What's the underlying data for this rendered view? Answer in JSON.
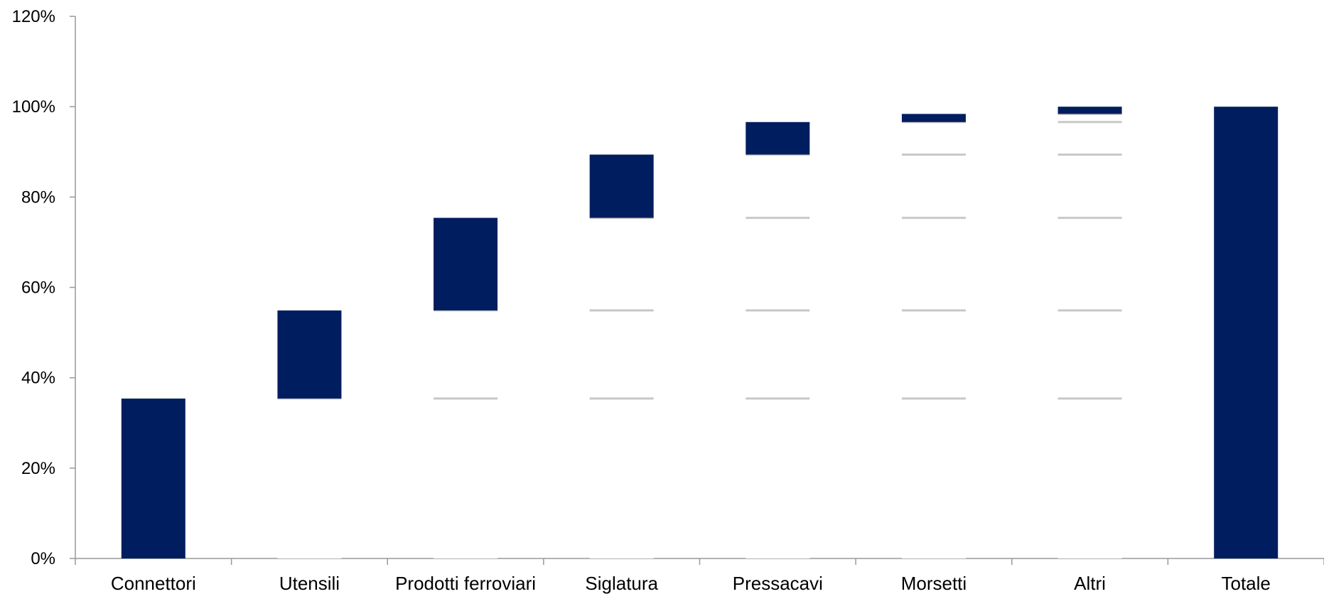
{
  "chart_data": {
    "type": "bar",
    "subtype": "waterfall",
    "categories": [
      "Connettori",
      "Utensili",
      "Prodotti ferroviari",
      "Siglatura",
      "Pressacavi",
      "Morsetti",
      "Altri",
      "Totale"
    ],
    "series": [
      {
        "values": [
          0,
          35.4,
          54.9,
          75.4,
          89.4,
          96.6,
          98.4,
          0
        ]
      },
      {
        "values": [
          35.4,
          19.5,
          20.5,
          14.0,
          7.2,
          1.8,
          1.6,
          100
        ]
      }
    ],
    "ylim": [
      0,
      120
    ],
    "yticks": [
      "0%",
      "20%",
      "40%",
      "60%",
      "80%",
      "100%",
      "120%"
    ],
    "grid": false,
    "legend": "none",
    "colors": {
      "bar": "#001E5F",
      "base_segment_line": "#c8c8c8",
      "axis": "#999999"
    }
  }
}
